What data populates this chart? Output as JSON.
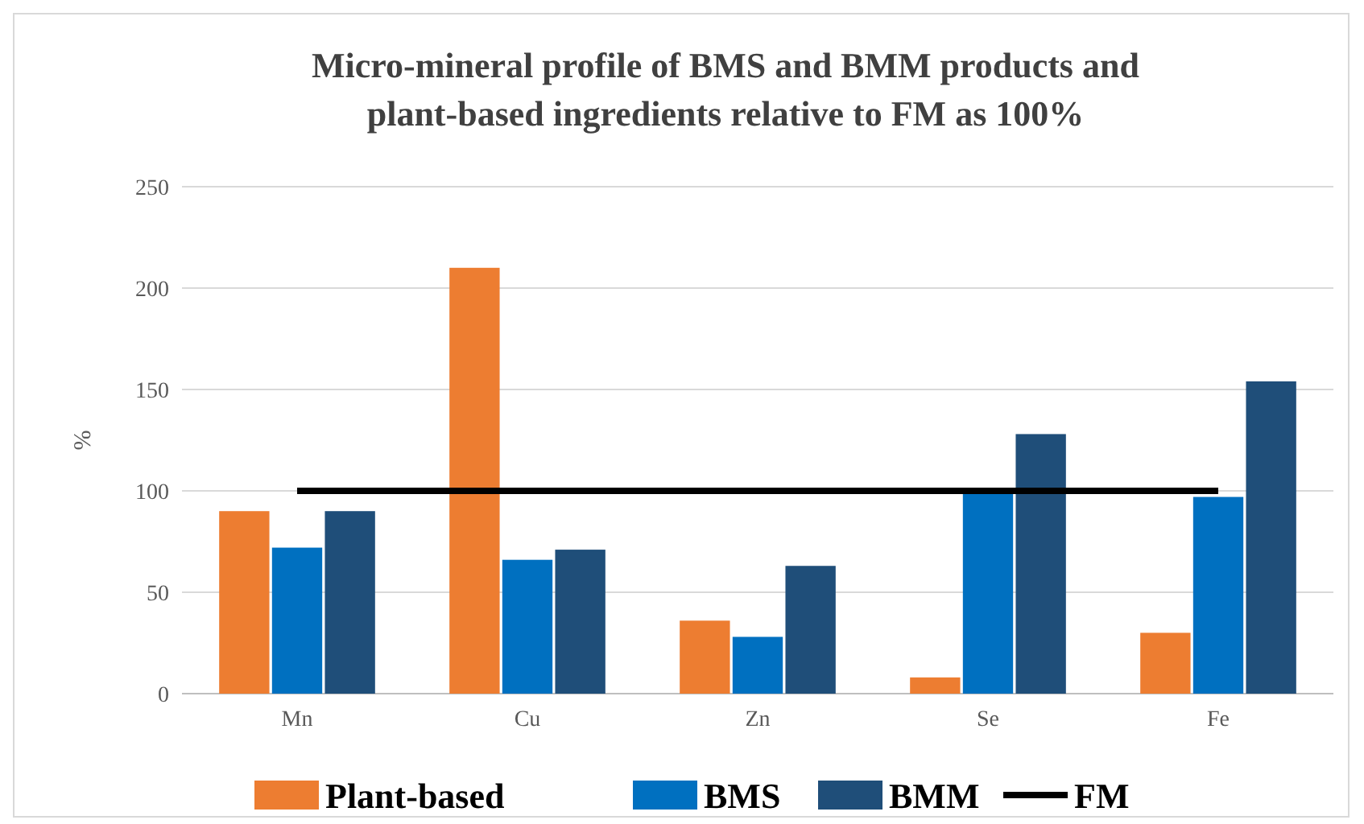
{
  "chart_data": {
    "type": "bar",
    "title": "Micro-mineral profile of BMS and BMM products and\nplant-based ingredients relative to FM as 100%",
    "ylabel": "%",
    "categories": [
      "Mn",
      "Cu",
      "Zn",
      "Se",
      "Fe"
    ],
    "series": [
      {
        "name": "Plant-based",
        "color": "#ed7d31",
        "values": [
          90,
          210,
          36,
          8,
          30
        ]
      },
      {
        "name": "BMS",
        "color": "#0070c0",
        "values": [
          72,
          66,
          28,
          100,
          97
        ]
      },
      {
        "name": "BMM",
        "color": "#1f4e79",
        "values": [
          90,
          71,
          63,
          128,
          154
        ]
      },
      {
        "name": "FM",
        "type": "line",
        "color": "#000000",
        "values": [
          100,
          100,
          100,
          100,
          100
        ]
      }
    ],
    "ylim": [
      0,
      250
    ],
    "yticks": [
      0,
      50,
      100,
      150,
      200,
      250
    ],
    "grid": "y",
    "legend": "bottom"
  }
}
